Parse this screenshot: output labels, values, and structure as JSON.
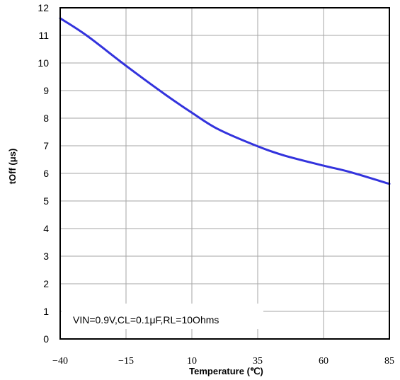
{
  "chart_data": {
    "type": "line",
    "xlabel": "Temperature (℃)",
    "ylabel": "tOff (μs)",
    "xlim": [
      -40,
      85
    ],
    "ylim": [
      0,
      12
    ],
    "x_ticks": [
      "−40",
      "−15",
      "10",
      "35",
      "60",
      "85"
    ],
    "y_ticks": [
      "0",
      "1",
      "2",
      "3",
      "4",
      "5",
      "6",
      "7",
      "8",
      "9",
      "10",
      "11",
      "12"
    ],
    "annotation": "VIN=0.9V,CL=0.1μF,RL=10Ohms",
    "grid": true,
    "series": [
      {
        "color": "#3333dd",
        "x": [
          -40,
          -30,
          -15,
          0,
          10,
          20,
          35,
          45,
          60,
          70,
          85
        ],
        "y": [
          11.62,
          11.0,
          9.9,
          8.85,
          8.2,
          7.6,
          6.98,
          6.65,
          6.28,
          6.05,
          5.62
        ]
      }
    ]
  }
}
